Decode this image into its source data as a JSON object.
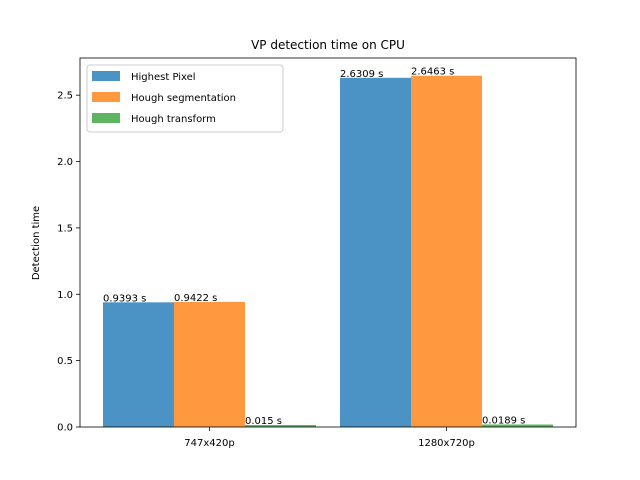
{
  "chart_data": {
    "type": "bar",
    "title": "VP detection time on CPU",
    "xlabel": "",
    "ylabel": "Detection time",
    "categories": [
      "747x420p",
      "1280x720p"
    ],
    "series": [
      {
        "name": "Highest Pixel",
        "color": "#4c93c5",
        "values": [
          0.9393,
          2.6309
        ],
        "labels": [
          "0.9393 s",
          "2.6309 s"
        ]
      },
      {
        "name": "Hough segmentation",
        "color": "#ff993f",
        "values": [
          0.9422,
          2.6463
        ],
        "labels": [
          "0.9422 s",
          "2.6463 s"
        ]
      },
      {
        "name": "Hough transform",
        "color": "#5fb55f",
        "values": [
          0.015,
          0.0189
        ],
        "labels": [
          "0.015 s",
          "0.0189 s"
        ]
      }
    ],
    "ylim": [
      0,
      2.78
    ],
    "yticks": [
      0.0,
      0.5,
      1.0,
      1.5,
      2.0,
      2.5
    ],
    "ytick_labels": [
      "0.0",
      "0.5",
      "1.0",
      "1.5",
      "2.0",
      "2.5"
    ],
    "grid": false,
    "legend_position": "upper-left"
  }
}
